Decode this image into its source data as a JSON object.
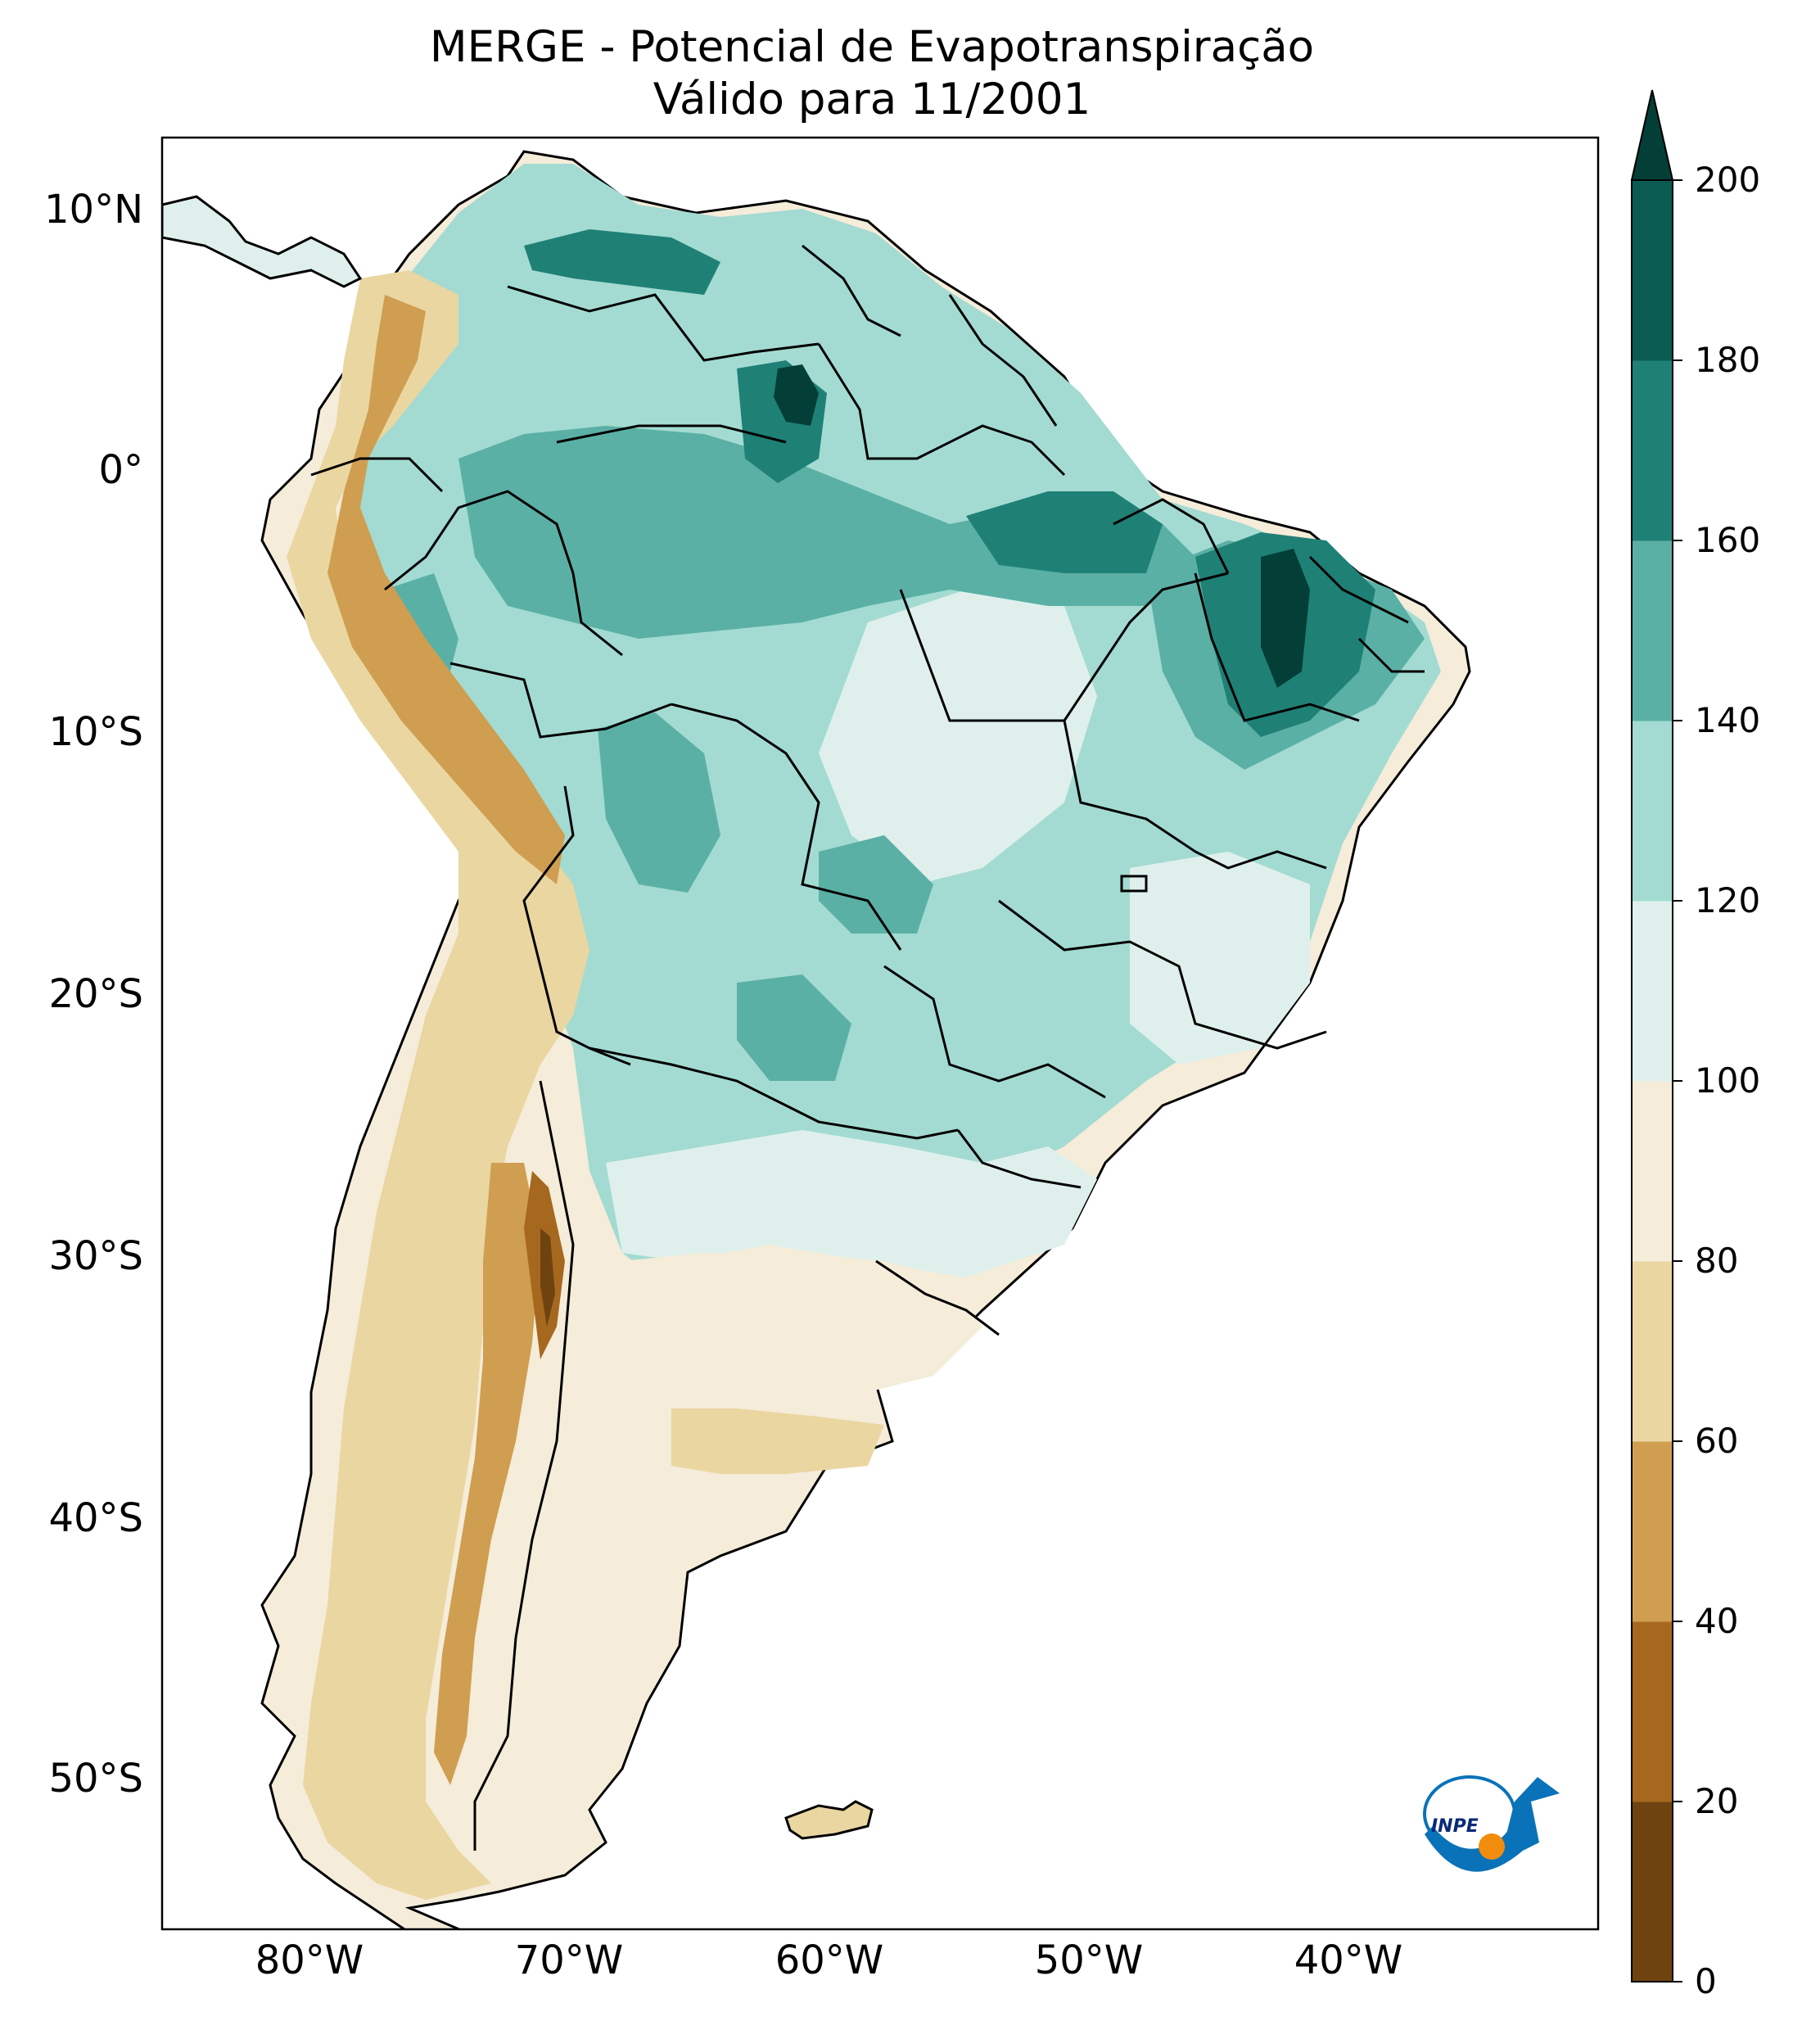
{
  "title": "MERGE - Potencial de Evapotranspiração",
  "subtitle": "Válido para 11/2001",
  "map": {
    "region": "South America",
    "lat_ticks": [
      "10°N",
      "0°",
      "10°S",
      "20°S",
      "30°S",
      "40°S",
      "50°S"
    ],
    "lon_ticks": [
      "80°W",
      "70°W",
      "60°W",
      "50°W",
      "40°W"
    ],
    "land_color_default": "#f5ecd9",
    "ocean_color": "#ffffff",
    "border_color": "#000000"
  },
  "colorbar": {
    "ticks": [
      "0",
      "20",
      "40",
      "60",
      "80",
      "100",
      "120",
      "140",
      "160",
      "180",
      "200"
    ],
    "min": 0,
    "max": 200,
    "step": 20,
    "extend": "max",
    "colors": [
      "#6f4310",
      "#a6671e",
      "#cf9e50",
      "#ead6a1",
      "#f5ecd9",
      "#dff0ec",
      "#a3dbd2",
      "#5bb0a5",
      "#1f8076",
      "#0a5c52",
      "#033f36"
    ]
  },
  "logo": {
    "text": "INPE",
    "colors": [
      "#0a72b8",
      "#f28c0c"
    ]
  }
}
